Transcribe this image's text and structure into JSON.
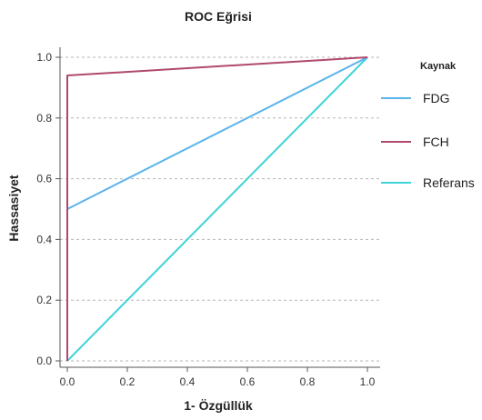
{
  "chart_data": {
    "type": "line",
    "title": "ROC Eğrisi",
    "xlabel": "1- Özgüllük",
    "ylabel": "Hassasiyet",
    "xlim": [
      0.0,
      1.0
    ],
    "ylim": [
      0.0,
      1.0
    ],
    "xticks": [
      "0.0",
      "0.2",
      "0.4",
      "0.6",
      "0.8",
      "1.0"
    ],
    "yticks": [
      "0.0",
      "0.2",
      "0.4",
      "0.6",
      "0.8",
      "1.0"
    ],
    "grid": "horizontal-dashed",
    "legend": {
      "title": "Kaynak",
      "placement": "right"
    },
    "series": [
      {
        "name": "FDG",
        "color": "#5ab4ec",
        "x": [
          0.0,
          0.0,
          1.0
        ],
        "y": [
          0.0,
          0.5,
          1.0
        ]
      },
      {
        "name": "FCH",
        "color": "#b0486e",
        "x": [
          0.0,
          0.0,
          1.0
        ],
        "y": [
          0.0,
          0.94,
          1.0
        ]
      },
      {
        "name": "Referans",
        "color": "#3ed3d8",
        "x": [
          0.0,
          1.0
        ],
        "y": [
          0.0,
          1.0
        ]
      }
    ]
  }
}
